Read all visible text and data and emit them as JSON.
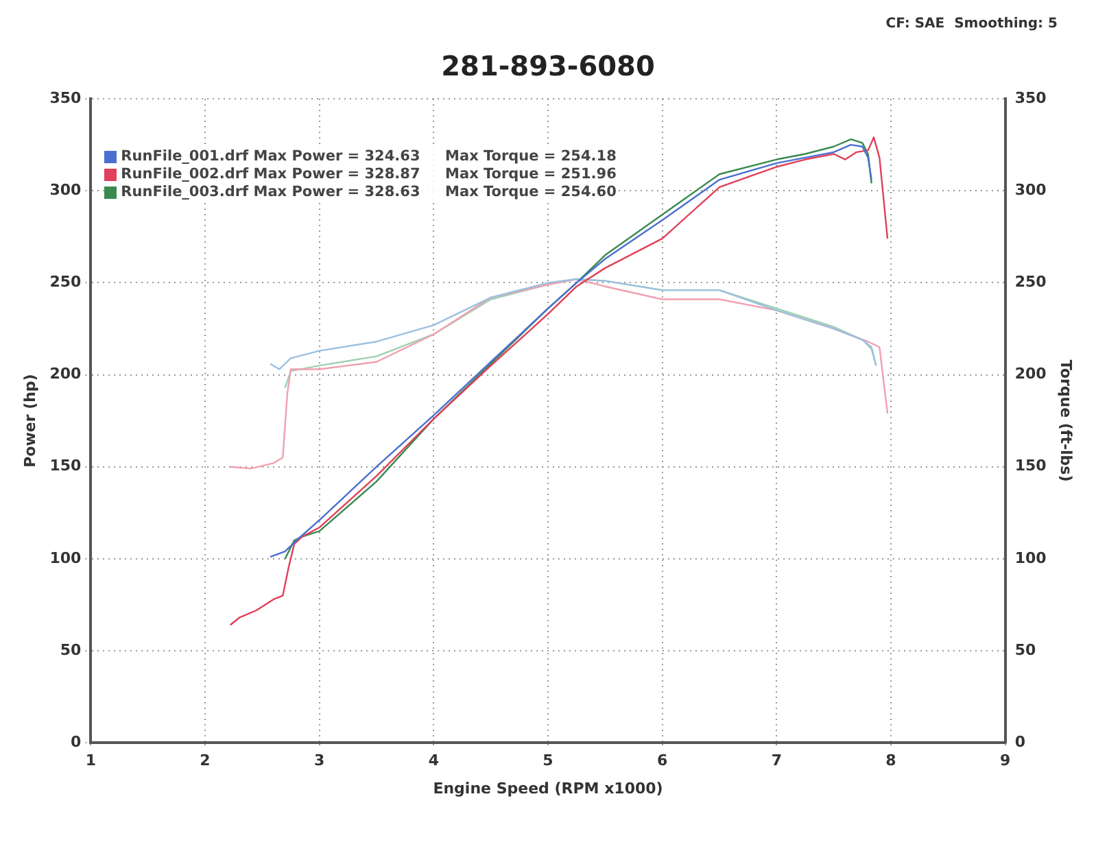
{
  "chart_data": {
    "type": "line",
    "title": "281-893-6080",
    "xlabel": "Engine Speed (RPM x1000)",
    "ylabel": "Power (hp)",
    "y2label": "Torque (ft-lbs)",
    "annotations": [
      "CF: SAE  Smoothing: 5"
    ],
    "xlim": [
      1,
      9
    ],
    "xticks": [
      1,
      2,
      3,
      4,
      5,
      6,
      7,
      8,
      9
    ],
    "ylim": [
      0,
      350
    ],
    "yticks": [
      0,
      50,
      100,
      150,
      200,
      250,
      300,
      350
    ],
    "y2lim": [
      0,
      350
    ],
    "y2ticks": [
      0,
      50,
      100,
      150,
      200,
      250,
      300,
      350
    ],
    "grid": true,
    "legend": "top left",
    "marker": "none",
    "line_style": "solid",
    "series": [
      {
        "name": "RunFile_001.drf Max Power = 324.63     Max Torque = 254.18",
        "color": "#4a6fd0",
        "x": [
          2.57,
          2.7,
          2.8,
          3.0,
          3.5,
          4.0,
          4.5,
          5.0,
          5.25,
          5.5,
          6.0,
          6.5,
          7.0,
          7.25,
          7.5,
          7.65,
          7.75,
          7.8,
          7.83
        ],
        "values": [
          101,
          104,
          110,
          121,
          150,
          178,
          207,
          236,
          250,
          263,
          284,
          306,
          315,
          318,
          321,
          325,
          324,
          318,
          306
        ]
      },
      {
        "name": "RunFile_002.drf Max Power = 328.87     Max Torque = 251.96",
        "color": "#e0405a",
        "x": [
          2.22,
          2.3,
          2.45,
          2.6,
          2.68,
          2.73,
          2.78,
          2.85,
          3.0,
          3.5,
          4.0,
          4.5,
          5.0,
          5.25,
          5.5,
          6.0,
          6.5,
          7.0,
          7.25,
          7.5,
          7.6,
          7.7,
          7.8,
          7.85,
          7.9,
          7.97
        ],
        "values": [
          64,
          68,
          72,
          78,
          80,
          95,
          108,
          112,
          117,
          145,
          176,
          205,
          233,
          248,
          258,
          274,
          302,
          313,
          317,
          320,
          317,
          321,
          322,
          329,
          318,
          274
        ]
      },
      {
        "name": "RunFile_003.drf Max Power = 328.63     Max Torque = 254.60",
        "color": "#3a8a50",
        "x": [
          2.7,
          2.78,
          2.85,
          3.0,
          3.5,
          4.0,
          4.5,
          5.0,
          5.25,
          5.5,
          6.0,
          6.5,
          7.0,
          7.25,
          7.5,
          7.65,
          7.75,
          7.8,
          7.83
        ],
        "values": [
          100,
          110,
          112,
          115,
          142,
          176,
          206,
          236,
          250,
          265,
          287,
          309,
          317,
          320,
          324,
          328,
          326,
          320,
          304
        ]
      },
      {
        "color": "#9cc0e0",
        "axis": "y2",
        "x": [
          2.57,
          2.65,
          2.75,
          3.0,
          3.5,
          4.0,
          4.5,
          5.0,
          5.25,
          5.5,
          6.0,
          6.5,
          7.0,
          7.5,
          7.75,
          7.83,
          7.87
        ],
        "values": [
          206,
          203,
          209,
          213,
          218,
          227,
          242,
          250,
          252,
          251,
          246,
          246,
          235,
          225,
          219,
          215,
          205
        ]
      },
      {
        "color": "#f0a0b0",
        "axis": "y2",
        "x": [
          2.22,
          2.4,
          2.6,
          2.68,
          2.72,
          2.75,
          3.0,
          3.5,
          4.0,
          4.5,
          5.0,
          5.25,
          5.5,
          6.0,
          6.5,
          7.0,
          7.5,
          7.8,
          7.9,
          7.97
        ],
        "values": [
          150,
          149,
          152,
          155,
          190,
          203,
          203,
          207,
          222,
          242,
          249,
          252,
          248,
          241,
          241,
          235,
          225,
          218,
          215,
          179
        ]
      },
      {
        "color": "#a0d0b0",
        "axis": "y2",
        "x": [
          2.7,
          2.75,
          3.0,
          3.5,
          4.0,
          4.5,
          5.0,
          5.25,
          5.5,
          6.0,
          6.5,
          7.0,
          7.5,
          7.75,
          7.83,
          7.87
        ],
        "values": [
          193,
          202,
          205,
          210,
          222,
          241,
          249,
          252,
          251,
          246,
          246,
          236,
          226,
          219,
          214,
          205
        ]
      }
    ]
  }
}
